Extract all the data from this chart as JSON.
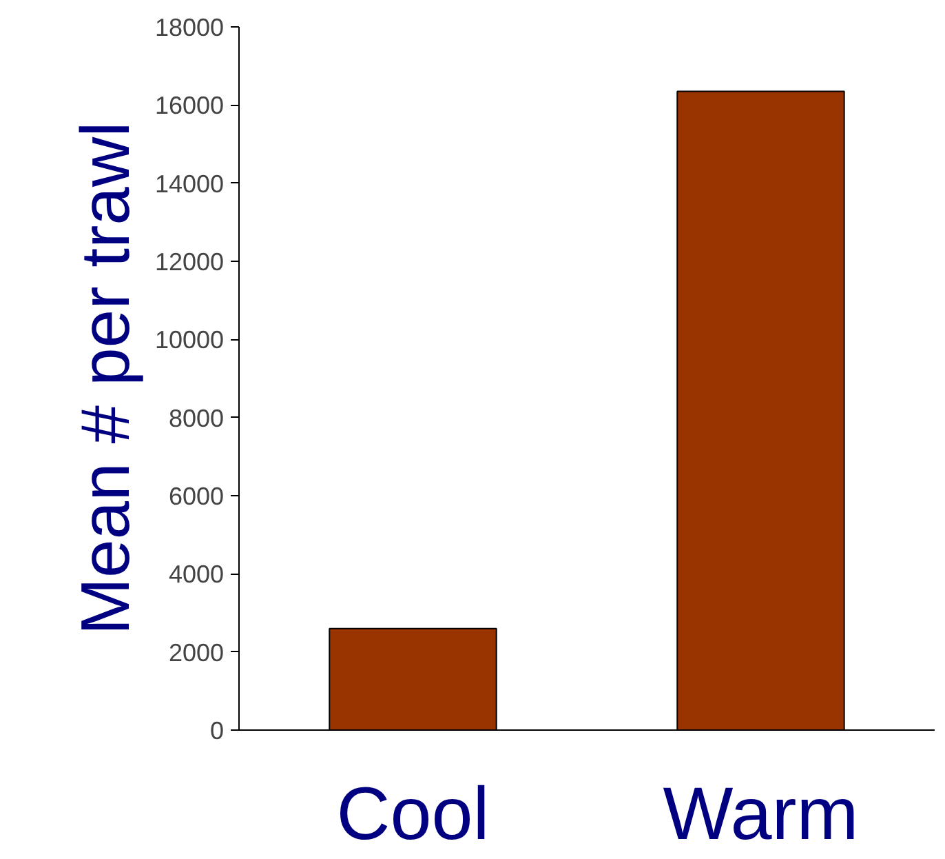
{
  "chart_data": {
    "type": "bar",
    "ylabel": "Mean # per trawl",
    "categories": [
      "Cool",
      "Warm"
    ],
    "values": [
      2600,
      16350
    ],
    "color": "#993300",
    "ylim": [
      0,
      18000
    ],
    "yticks": [
      0,
      2000,
      4000,
      6000,
      8000,
      10000,
      12000,
      14000,
      16000,
      18000
    ],
    "grid": false
  }
}
